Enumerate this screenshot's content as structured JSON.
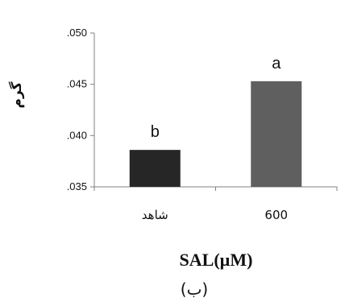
{
  "chart_data": {
    "type": "bar",
    "categories": [
      "شاهد",
      "600"
    ],
    "values": [
      0.0386,
      0.0453
    ],
    "bar_colors": [
      "#262626",
      "#5f5f5f"
    ],
    "data_labels": [
      "b",
      "a"
    ],
    "ylim": [
      0.035,
      0.05
    ],
    "yticks": [
      ".035",
      ".040",
      ".045",
      ".050"
    ],
    "ylabel": "گرم",
    "xlabel": "SAL(µM)",
    "subtitle": "(ب)",
    "grid": false,
    "legend": "none"
  }
}
